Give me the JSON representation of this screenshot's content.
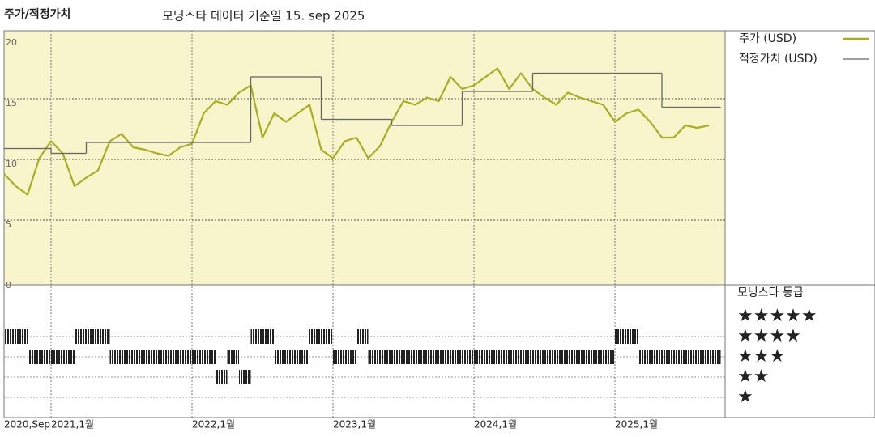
{
  "chart_data": {
    "type": "line",
    "title": "주가/적정가치",
    "subtitle": "모닝스타 데이터 기준일 15. sep 2025",
    "x": [
      "2020-09",
      "2020-10",
      "2020-11",
      "2020-12",
      "2021-01",
      "2021-02",
      "2021-03",
      "2021-04",
      "2021-05",
      "2021-06",
      "2021-07",
      "2021-08",
      "2021-09",
      "2021-10",
      "2021-11",
      "2021-12",
      "2022-01",
      "2022-02",
      "2022-03",
      "2022-04",
      "2022-05",
      "2022-06",
      "2022-07",
      "2022-08",
      "2022-09",
      "2022-10",
      "2022-11",
      "2022-12",
      "2023-01",
      "2023-02",
      "2023-03",
      "2023-04",
      "2023-05",
      "2023-06",
      "2023-07",
      "2023-08",
      "2023-09",
      "2023-10",
      "2023-11",
      "2023-12",
      "2024-01",
      "2024-02",
      "2024-03",
      "2024-04",
      "2024-05",
      "2024-06",
      "2024-07",
      "2024-08",
      "2024-09",
      "2024-10",
      "2024-11",
      "2024-12",
      "2025-01",
      "2025-02",
      "2025-03",
      "2025-04",
      "2025-05",
      "2025-06",
      "2025-07",
      "2025-08",
      "2025-09"
    ],
    "series": [
      {
        "name": "주가 (USD)",
        "color": "#a9ad22",
        "values": [
          8.8,
          7.8,
          7.1,
          10.1,
          11.5,
          10.5,
          7.8,
          8.5,
          9.1,
          11.5,
          12.1,
          11.0,
          10.8,
          10.5,
          10.3,
          11.0,
          11.3,
          13.8,
          14.8,
          14.5,
          15.5,
          16.1,
          11.8,
          13.8,
          13.1,
          13.8,
          14.5,
          10.8,
          10.1,
          11.5,
          11.8,
          10.1,
          11.1,
          13.1,
          14.8,
          14.5,
          15.1,
          14.8,
          16.8,
          15.8,
          16.1,
          16.8,
          17.5,
          15.8,
          17.1,
          15.8,
          15.1,
          14.5,
          15.5,
          15.1,
          14.8,
          14.5,
          13.1,
          13.8,
          14.1,
          13.1,
          11.8,
          11.8,
          12.8,
          12.6,
          12.8
        ]
      },
      {
        "name": "적정가치 (USD)",
        "color": "#666666",
        "step": true,
        "values": [
          10.9,
          10.9,
          10.9,
          10.9,
          10.5,
          10.5,
          10.5,
          11.4,
          11.4,
          11.4,
          11.4,
          11.4,
          11.4,
          11.4,
          11.4,
          11.4,
          11.4,
          11.4,
          11.4,
          11.4,
          11.4,
          16.8,
          16.8,
          16.8,
          16.8,
          16.8,
          16.8,
          13.3,
          13.3,
          13.3,
          13.3,
          13.3,
          13.3,
          12.8,
          12.8,
          12.8,
          12.8,
          12.8,
          12.8,
          15.6,
          15.6,
          15.6,
          15.6,
          15.6,
          15.6,
          17.1,
          17.1,
          17.1,
          17.1,
          17.1,
          17.1,
          17.1,
          17.1,
          17.1,
          17.1,
          17.1,
          14.3,
          14.3,
          14.3,
          14.3,
          14.3
        ]
      }
    ],
    "ylim": [
      0,
      20.6
    ],
    "yticks": [
      0,
      5,
      10,
      15,
      20
    ],
    "xticks": [
      {
        "value": "2020-09",
        "label": "2020,Sep"
      },
      {
        "value": "2021-01",
        "label": "2021,1월"
      },
      {
        "value": "2022-01",
        "label": "2022,1월"
      },
      {
        "value": "2023-01",
        "label": "2023,1월"
      },
      {
        "value": "2024-01",
        "label": "2024,1월"
      },
      {
        "value": "2025-01",
        "label": "2025,1월"
      }
    ],
    "grid": true,
    "ratings": {
      "title": "모닝스타 등급",
      "labels": [
        "★★★★★",
        "★★★★",
        "★★★",
        "★★",
        "★"
      ],
      "values": [
        4,
        4,
        3,
        3,
        3,
        3,
        4,
        4,
        4,
        3,
        3,
        3,
        3,
        3,
        3,
        3,
        3,
        3,
        2,
        3,
        2,
        4,
        4,
        3,
        3,
        3,
        4,
        4,
        3,
        3,
        4,
        3,
        3,
        3,
        3,
        3,
        3,
        3,
        3,
        3,
        3,
        3,
        3,
        3,
        3,
        3,
        3,
        3,
        3,
        3,
        3,
        3,
        4,
        4,
        3,
        3,
        3,
        3,
        3,
        3,
        3
      ]
    }
  }
}
